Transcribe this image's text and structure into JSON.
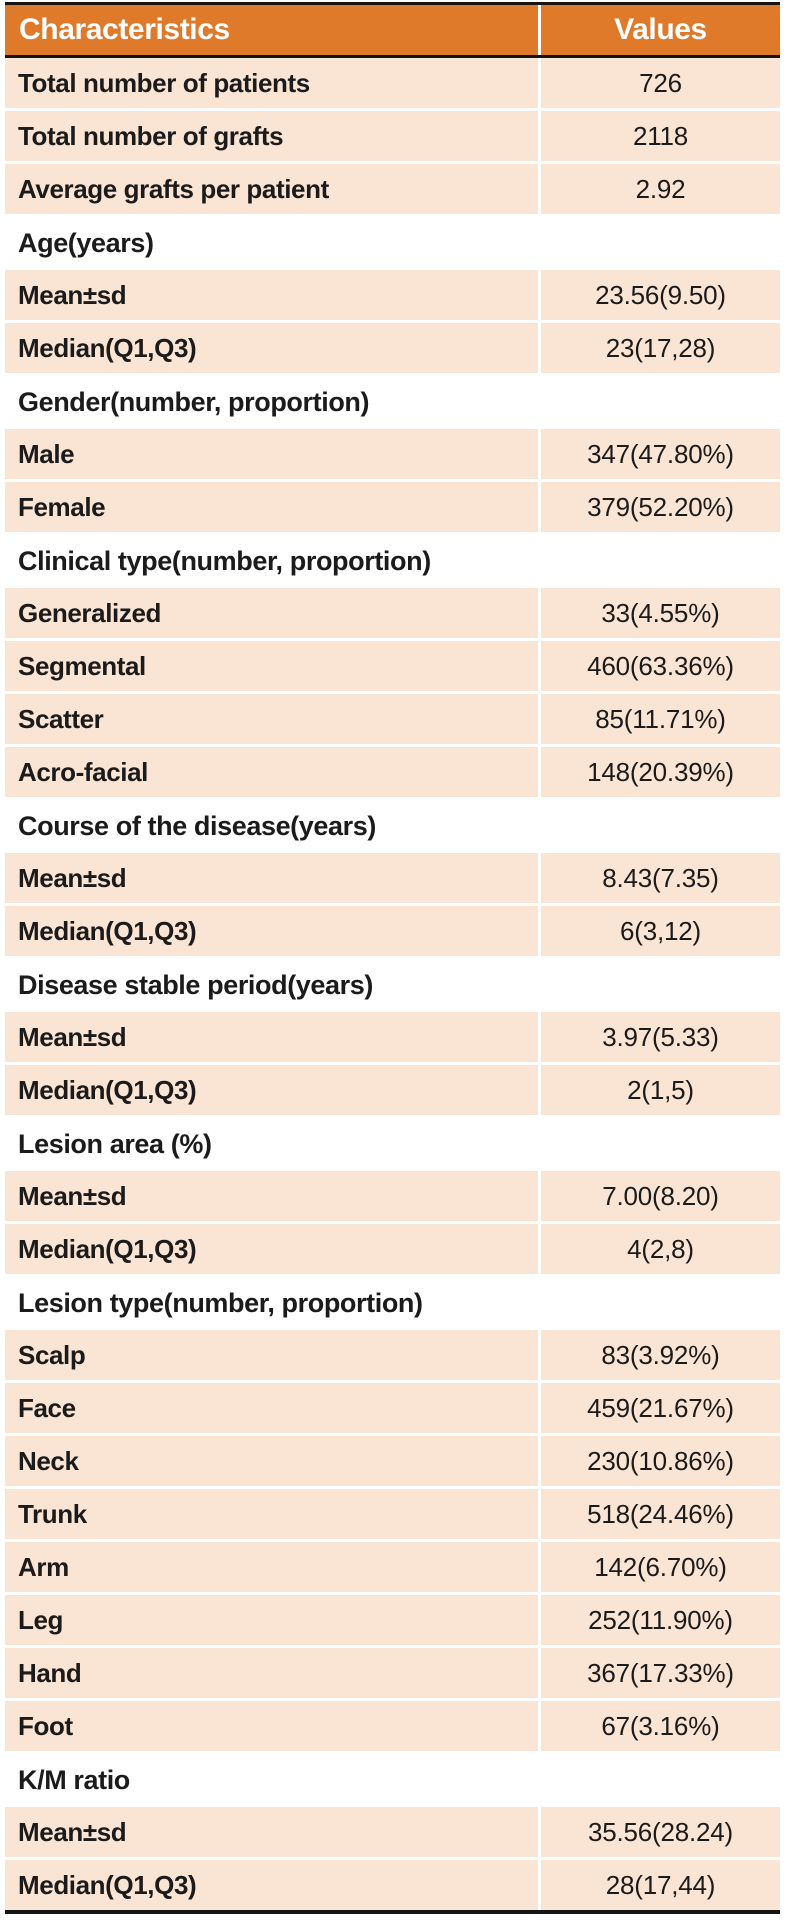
{
  "table": {
    "header": {
      "characteristics": "Characteristics",
      "values": "Values"
    },
    "colors": {
      "header_bg": "#df7a2b",
      "header_text": "#ffffff",
      "row_bg": "#fae4d4",
      "rule": "#141414",
      "text": "#1b1b1b"
    },
    "rows": [
      {
        "type": "data",
        "label": "Total number of patients",
        "value": "726"
      },
      {
        "type": "data",
        "label": "Total number of grafts",
        "value": "2118"
      },
      {
        "type": "data",
        "label": "Average grafts per patient",
        "value": "2.92"
      },
      {
        "type": "section",
        "label": "Age(years)"
      },
      {
        "type": "data",
        "label": "Mean±sd",
        "value": "23.56(9.50)"
      },
      {
        "type": "data",
        "label": "Median(Q1,Q3)",
        "value": "23(17,28)"
      },
      {
        "type": "section",
        "label": "Gender(number, proportion)"
      },
      {
        "type": "data",
        "label": "Male",
        "value": "347(47.80%)"
      },
      {
        "type": "data",
        "label": "Female",
        "value": "379(52.20%)"
      },
      {
        "type": "section",
        "label": "Clinical type(number, proportion)"
      },
      {
        "type": "data",
        "label": "Generalized",
        "value": "33(4.55%)"
      },
      {
        "type": "data",
        "label": "Segmental",
        "value": "460(63.36%)"
      },
      {
        "type": "data",
        "label": "Scatter",
        "value": "85(11.71%)"
      },
      {
        "type": "data",
        "label": "Acro-facial",
        "value": "148(20.39%)"
      },
      {
        "type": "section",
        "label": "Course of the disease(years)"
      },
      {
        "type": "data",
        "label": "Mean±sd",
        "value": "8.43(7.35)"
      },
      {
        "type": "data",
        "label": "Median(Q1,Q3)",
        "value": "6(3,12)"
      },
      {
        "type": "section",
        "label": "Disease stable period(years)"
      },
      {
        "type": "data",
        "label": "Mean±sd",
        "value": "3.97(5.33)"
      },
      {
        "type": "data",
        "label": "Median(Q1,Q3)",
        "value": "2(1,5)"
      },
      {
        "type": "section",
        "label": "Lesion area (%)"
      },
      {
        "type": "data",
        "label": "Mean±sd",
        "value": "7.00(8.20)"
      },
      {
        "type": "data",
        "label": "Median(Q1,Q3)",
        "value": "4(2,8)"
      },
      {
        "type": "section",
        "label": "Lesion type(number, proportion)"
      },
      {
        "type": "data",
        "label": "Scalp",
        "value": "83(3.92%)"
      },
      {
        "type": "data",
        "label": "Face",
        "value": "459(21.67%)"
      },
      {
        "type": "data",
        "label": "Neck",
        "value": "230(10.86%)"
      },
      {
        "type": "data",
        "label": "Trunk",
        "value": "518(24.46%)"
      },
      {
        "type": "data",
        "label": "Arm",
        "value": "142(6.70%)"
      },
      {
        "type": "data",
        "label": "Leg",
        "value": "252(11.90%)"
      },
      {
        "type": "data",
        "label": "Hand",
        "value": "367(17.33%)"
      },
      {
        "type": "data",
        "label": "Foot",
        "value": "67(3.16%)"
      },
      {
        "type": "section",
        "label": "K/M ratio"
      },
      {
        "type": "data",
        "label": "Mean±sd",
        "value": "35.56(28.24)"
      },
      {
        "type": "data",
        "label": "Median(Q1,Q3)",
        "value": "28(17,44)"
      }
    ]
  },
  "chart_data": {
    "type": "table",
    "columns": [
      "Characteristics",
      "Values"
    ],
    "rows": [
      [
        "Total number of patients",
        "726"
      ],
      [
        "Total number of grafts",
        "2118"
      ],
      [
        "Average grafts per patient",
        "2.92"
      ],
      [
        "Age(years)",
        ""
      ],
      [
        "Mean±sd",
        "23.56(9.50)"
      ],
      [
        "Median(Q1,Q3)",
        "23(17,28)"
      ],
      [
        "Gender(number, proportion)",
        ""
      ],
      [
        "Male",
        "347(47.80%)"
      ],
      [
        "Female",
        "379(52.20%)"
      ],
      [
        "Clinical type(number, proportion)",
        ""
      ],
      [
        "Generalized",
        "33(4.55%)"
      ],
      [
        "Segmental",
        "460(63.36%)"
      ],
      [
        "Scatter",
        "85(11.71%)"
      ],
      [
        "Acro-facial",
        "148(20.39%)"
      ],
      [
        "Course of the disease(years)",
        ""
      ],
      [
        "Mean±sd",
        "8.43(7.35)"
      ],
      [
        "Median(Q1,Q3)",
        "6(3,12)"
      ],
      [
        "Disease stable period(years)",
        ""
      ],
      [
        "Mean±sd",
        "3.97(5.33)"
      ],
      [
        "Median(Q1,Q3)",
        "2(1,5)"
      ],
      [
        "Lesion area (%)",
        ""
      ],
      [
        "Mean±sd",
        "7.00(8.20)"
      ],
      [
        "Median(Q1,Q3)",
        "4(2,8)"
      ],
      [
        "Lesion type(number, proportion)",
        ""
      ],
      [
        "Scalp",
        "83(3.92%)"
      ],
      [
        "Face",
        "459(21.67%)"
      ],
      [
        "Neck",
        "230(10.86%)"
      ],
      [
        "Trunk",
        "518(24.46%)"
      ],
      [
        "Arm",
        "142(6.70%)"
      ],
      [
        "Leg",
        "252(11.90%)"
      ],
      [
        "Hand",
        "367(17.33%)"
      ],
      [
        "Foot",
        "67(3.16%)"
      ],
      [
        "K/M ratio",
        ""
      ],
      [
        "Mean±sd",
        "35.56(28.24)"
      ],
      [
        "Median(Q1,Q3)",
        "28(17,44)"
      ]
    ]
  }
}
